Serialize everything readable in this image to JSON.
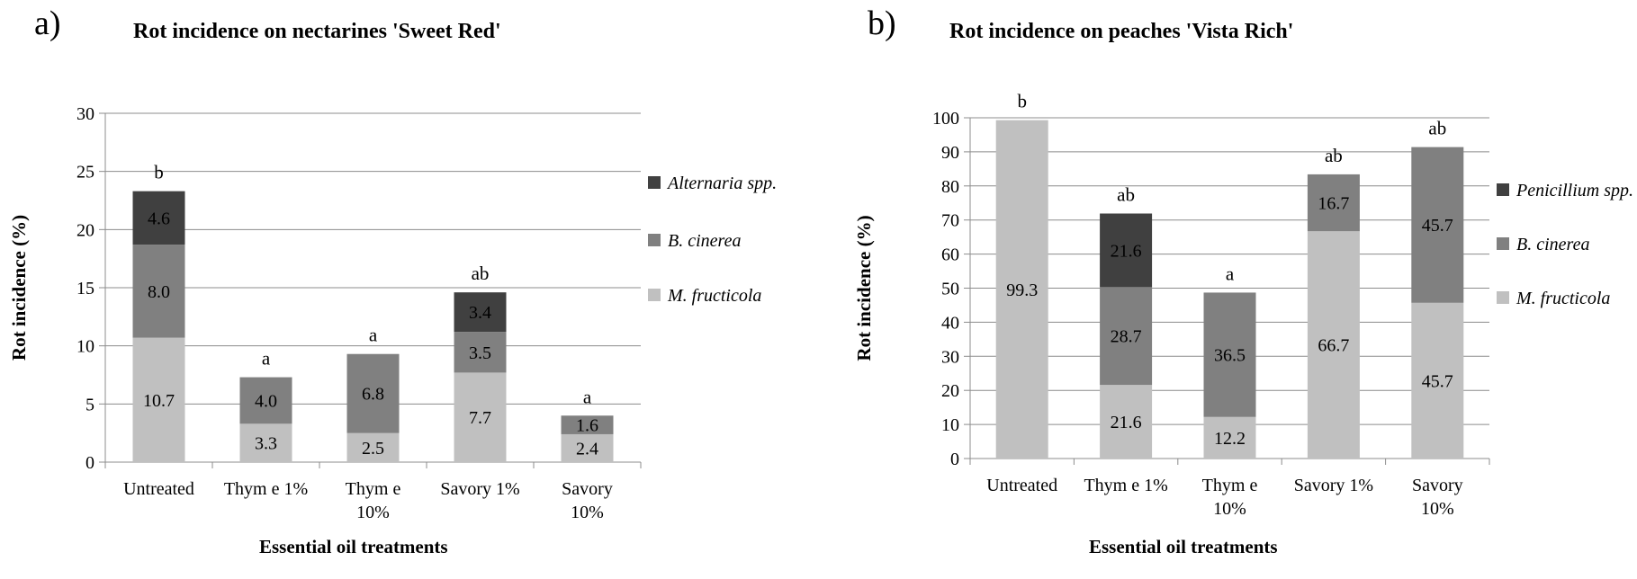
{
  "panels": [
    {
      "letter": "a)",
      "title": "Rot incidence on nectarines 'Sweet Red'",
      "xlabel": "Essential oil treatments",
      "ylabel": "Rot incidence (%)"
    },
    {
      "letter": "b)",
      "title": "Rot incidence on peaches 'Vista Rich'",
      "xlabel": "Essential oil treatments",
      "ylabel": "Rot incidence (%)"
    }
  ],
  "chart_data": [
    {
      "type": "bar",
      "stacked": true,
      "title": "Rot incidence on nectarines 'Sweet Red'",
      "xlabel": "Essential oil treatments",
      "ylabel": "Rot incidence (%)",
      "ylim": [
        0,
        30
      ],
      "yticks": [
        0,
        5,
        10,
        15,
        20,
        25,
        30
      ],
      "grid": true,
      "legend_position": "right",
      "categories": [
        [
          "Untreated"
        ],
        [
          "Thym e 1%"
        ],
        [
          "Thym e",
          "10%"
        ],
        [
          "Savory 1%"
        ],
        [
          "Savory",
          "10%"
        ]
      ],
      "significance_letters": [
        "b",
        "a",
        "a",
        "ab",
        "a"
      ],
      "series": [
        {
          "name": "M. fructicola",
          "color": "#c0c0c0",
          "values": [
            10.7,
            3.3,
            2.5,
            7.7,
            2.4
          ],
          "labels": [
            "10.7",
            "3.3",
            "2.5",
            "7.7",
            "2.4"
          ]
        },
        {
          "name": "B. cinerea",
          "color": "#808080",
          "values": [
            8.0,
            4.0,
            6.8,
            3.5,
            1.6
          ],
          "labels": [
            "8.0",
            "4.0",
            "6.8",
            "3.5",
            "1.6"
          ]
        },
        {
          "name": "Alternaria spp.",
          "color": "#404040",
          "values": [
            4.6,
            0,
            0,
            3.4,
            0
          ],
          "labels": [
            "4.6",
            "",
            "",
            "3.4",
            ""
          ]
        }
      ]
    },
    {
      "type": "bar",
      "stacked": true,
      "title": "Rot incidence on peaches 'Vista Rich'",
      "xlabel": "Essential oil treatments",
      "ylabel": "Rot incidence (%)",
      "ylim": [
        0,
        100
      ],
      "yticks": [
        0,
        10,
        20,
        30,
        40,
        50,
        60,
        70,
        80,
        90,
        100
      ],
      "grid": true,
      "legend_position": "right",
      "categories": [
        [
          "Untreated"
        ],
        [
          "Thym e 1%"
        ],
        [
          "Thym e",
          "10%"
        ],
        [
          "Savory 1%"
        ],
        [
          "Savory",
          "10%"
        ]
      ],
      "significance_letters": [
        "b",
        "ab",
        "a",
        "ab",
        "ab"
      ],
      "series": [
        {
          "name": "M. fructicola",
          "color": "#c0c0c0",
          "values": [
            99.3,
            21.6,
            12.2,
            66.7,
            45.7
          ],
          "labels": [
            "99.3",
            "21.6",
            "12.2",
            "66.7",
            "45.7"
          ]
        },
        {
          "name": "B. cinerea",
          "color": "#808080",
          "values": [
            0,
            28.7,
            36.5,
            16.7,
            45.7
          ],
          "labels": [
            "",
            "28.7",
            "36.5",
            "16.7",
            "45.7"
          ]
        },
        {
          "name": "Penicillium spp.",
          "color": "#404040",
          "values": [
            0,
            21.6,
            0,
            0,
            0
          ],
          "labels": [
            "",
            "21.6",
            "",
            "",
            ""
          ]
        }
      ]
    }
  ]
}
